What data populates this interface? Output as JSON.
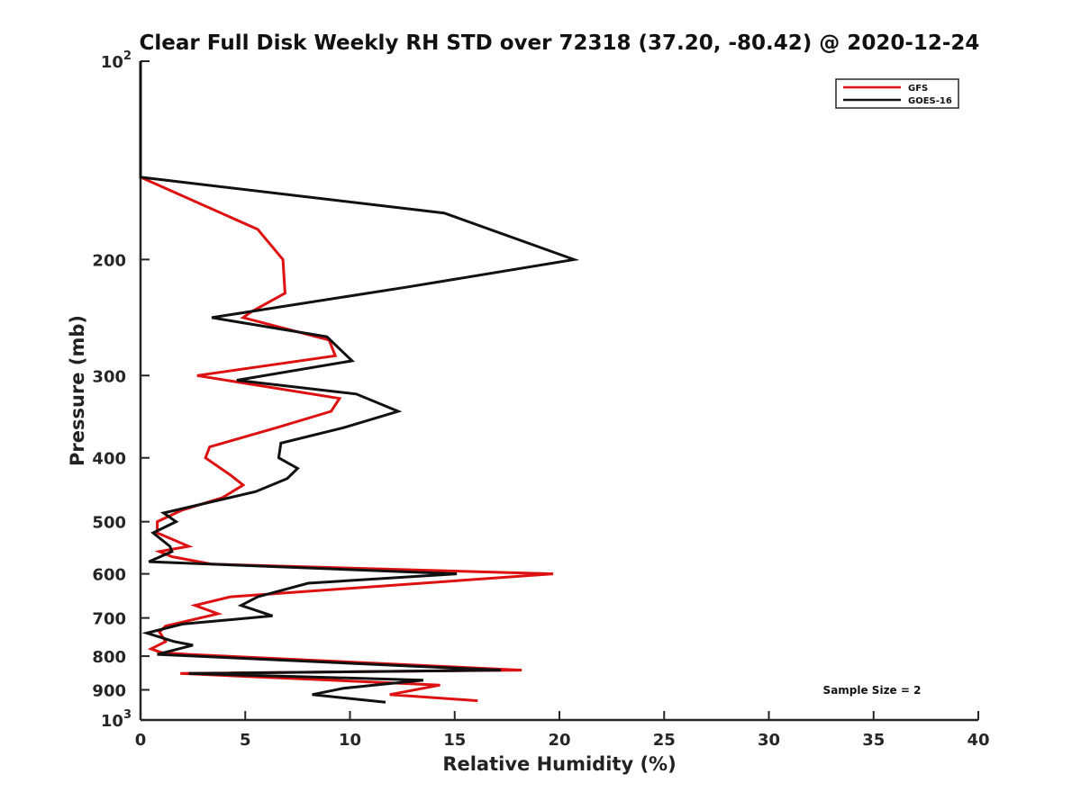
{
  "chart_data": {
    "type": "line",
    "title": "Clear Full Disk Weekly RH STD over 72318 (37.20, -80.42) @ 2020-12-24",
    "xlabel": "Relative Humidity (%)",
    "ylabel": "Pressure (mb)",
    "xlim": [
      0,
      40
    ],
    "ylim": [
      100,
      1000
    ],
    "yscale": "log",
    "y_reversed": true,
    "x_ticks": [
      0,
      5,
      10,
      15,
      20,
      25,
      30,
      35,
      40
    ],
    "y_ticks": [
      {
        "value": 100,
        "label": "10",
        "sup": "2"
      },
      {
        "value": 200,
        "label": "200"
      },
      {
        "value": 300,
        "label": "300"
      },
      {
        "value": 400,
        "label": "400"
      },
      {
        "value": 500,
        "label": "500"
      },
      {
        "value": 600,
        "label": "600"
      },
      {
        "value": 700,
        "label": "700"
      },
      {
        "value": 800,
        "label": "800"
      },
      {
        "value": 900,
        "label": "900"
      },
      {
        "value": 1000,
        "label": "10",
        "sup": "3"
      }
    ],
    "grid": false,
    "legend_position": "top-right",
    "series": [
      {
        "name": "GFS",
        "color": "#dd1111",
        "points": [
          [
            0,
            100
          ],
          [
            0,
            150
          ],
          [
            5.6,
            180
          ],
          [
            6.8,
            200
          ],
          [
            6.9,
            225
          ],
          [
            5.3,
            240
          ],
          [
            4.9,
            245
          ],
          [
            9.0,
            265
          ],
          [
            9.3,
            280
          ],
          [
            2.7,
            300
          ],
          [
            9.5,
            325
          ],
          [
            9.1,
            340
          ],
          [
            6.5,
            360
          ],
          [
            3.3,
            385
          ],
          [
            3.1,
            400
          ],
          [
            4.3,
            425
          ],
          [
            4.9,
            440
          ],
          [
            3.9,
            460
          ],
          [
            2.0,
            480
          ],
          [
            0.8,
            500
          ],
          [
            0.8,
            520
          ],
          [
            2.3,
            545
          ],
          [
            0.9,
            555
          ],
          [
            1.5,
            565
          ],
          [
            3.4,
            580
          ],
          [
            19.7,
            600
          ],
          [
            4.3,
            650
          ],
          [
            2.6,
            670
          ],
          [
            3.7,
            690
          ],
          [
            1.2,
            720
          ],
          [
            0.9,
            735
          ],
          [
            1.2,
            760
          ],
          [
            0.5,
            780
          ],
          [
            1.0,
            790
          ],
          [
            2.3,
            795
          ],
          [
            18.2,
            840
          ],
          [
            1.9,
            850
          ],
          [
            14.3,
            885
          ],
          [
            11.9,
            915
          ],
          [
            16.1,
            935
          ]
        ]
      },
      {
        "name": "GOES-16",
        "color": "#111111",
        "points": [
          [
            0,
            100
          ],
          [
            0,
            150
          ],
          [
            14.5,
            170
          ],
          [
            20.7,
            200
          ],
          [
            12.8,
            220
          ],
          [
            3.4,
            245
          ],
          [
            8.9,
            262
          ],
          [
            10.1,
            285
          ],
          [
            4.6,
            305
          ],
          [
            10.3,
            320
          ],
          [
            12.3,
            340
          ],
          [
            9.7,
            360
          ],
          [
            6.7,
            380
          ],
          [
            6.6,
            400
          ],
          [
            7.5,
            415
          ],
          [
            7.0,
            430
          ],
          [
            5.5,
            450
          ],
          [
            1.1,
            485
          ],
          [
            1.7,
            500
          ],
          [
            0.6,
            520
          ],
          [
            1.4,
            545
          ],
          [
            1.5,
            555
          ],
          [
            0.4,
            575
          ],
          [
            15.1,
            600
          ],
          [
            8.0,
            620
          ],
          [
            5.6,
            650
          ],
          [
            4.8,
            670
          ],
          [
            6.3,
            695
          ],
          [
            2.0,
            715
          ],
          [
            0.3,
            738
          ],
          [
            1.6,
            760
          ],
          [
            2.5,
            770
          ],
          [
            0.8,
            795
          ],
          [
            17.2,
            840
          ],
          [
            2.3,
            850
          ],
          [
            13.5,
            870
          ],
          [
            9.7,
            895
          ],
          [
            8.2,
            915
          ],
          [
            11.7,
            940
          ]
        ]
      }
    ],
    "annotations": [
      {
        "text": "Sample Size = 2"
      }
    ]
  }
}
